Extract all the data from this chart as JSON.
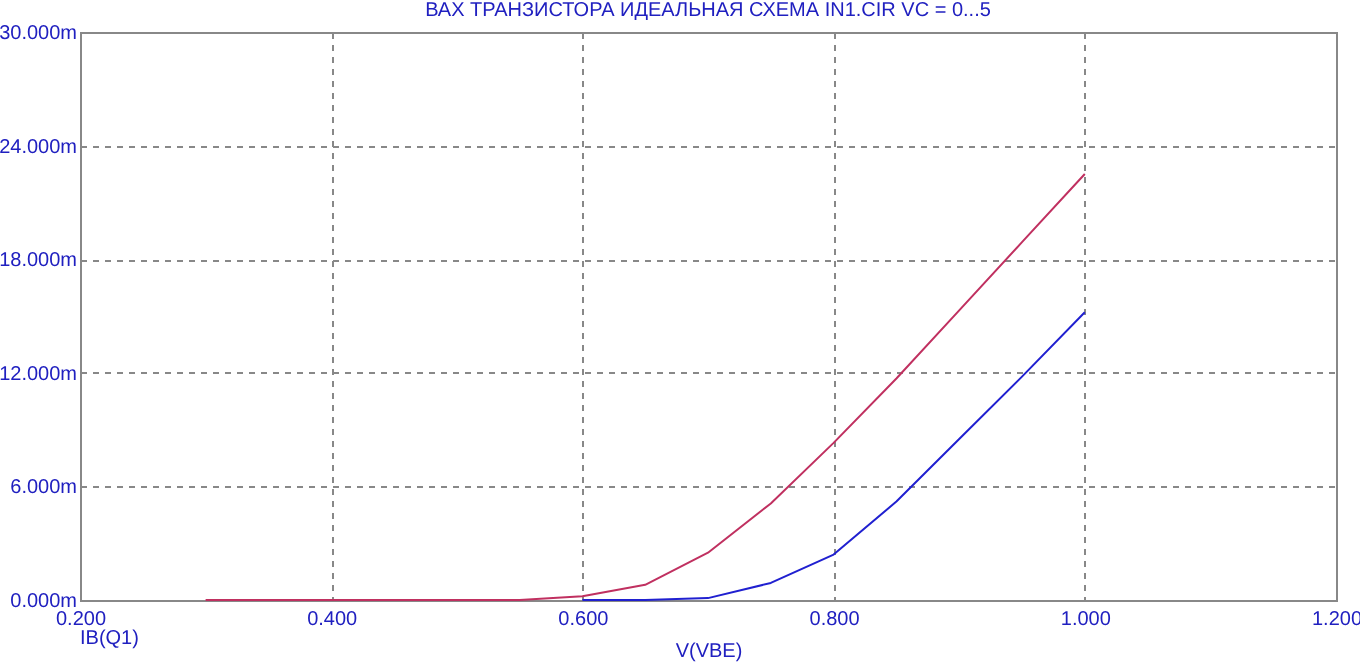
{
  "chart_data": {
    "type": "line",
    "title": "ВАХ ТРАНЗИСТОРА ИДЕАЛЬНАЯ СХЕМА IN1.CIR VC = 0...5",
    "xlabel": "V(VBE)",
    "annotations": [
      "IB(Q1)"
    ],
    "x": [
      0.3,
      0.4,
      0.5,
      0.55,
      0.6,
      0.65,
      0.7,
      0.75,
      0.8,
      0.85,
      0.9,
      0.95,
      1.0
    ],
    "series": [
      {
        "color": "#c03060",
        "values": [
          0,
          0,
          0,
          0,
          0.2,
          0.8,
          2.5,
          5.1,
          8.3,
          11.7,
          15.3,
          18.9,
          22.5
        ]
      },
      {
        "color": "#2020d0",
        "values": [
          null,
          null,
          null,
          null,
          0,
          0,
          0.1,
          0.9,
          2.4,
          5.2,
          8.5,
          11.8,
          15.2
        ]
      }
    ],
    "xlim": [
      0.2,
      1.2
    ],
    "ylim": [
      0,
      30
    ],
    "xticks": [
      {
        "value": 0.2,
        "label": "0.200"
      },
      {
        "value": 0.4,
        "label": "0.400"
      },
      {
        "value": 0.6,
        "label": "0.600"
      },
      {
        "value": 0.8,
        "label": "0.800"
      },
      {
        "value": 1.0,
        "label": "1.000"
      },
      {
        "value": 1.2,
        "label": "1.200"
      }
    ],
    "yticks": [
      {
        "value": 0,
        "label": "0.000m"
      },
      {
        "value": 6,
        "label": "6.000m"
      },
      {
        "value": 12,
        "label": "12.000m"
      },
      {
        "value": 18,
        "label": "18.000m"
      },
      {
        "value": 24,
        "label": "24.000m"
      },
      {
        "value": 30,
        "label": "30.000m"
      }
    ],
    "grid": true,
    "line_style": "solid"
  }
}
